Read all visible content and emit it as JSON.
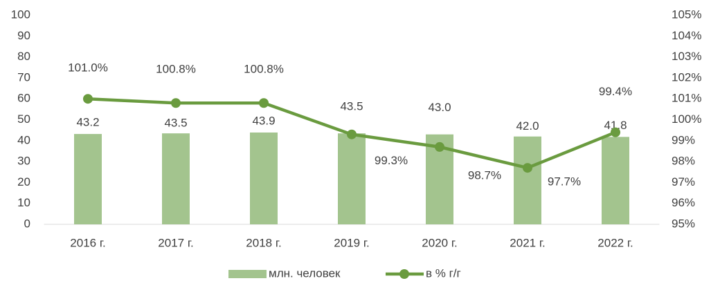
{
  "chart_data": {
    "type": "bar-line",
    "categories": [
      "2016 г.",
      "2017 г.",
      "2018 г.",
      "2019 г.",
      "2020 г.",
      "2021 г.",
      "2022 г."
    ],
    "series": [
      {
        "name": "млн. человек",
        "type": "bar",
        "color": "#a3c48e",
        "values": [
          43.2,
          43.5,
          43.9,
          43.5,
          43.0,
          42.0,
          41.8
        ],
        "value_labels": [
          "43.2",
          "43.5",
          "43.9",
          "43.5",
          "43.0",
          "42.0",
          "41.8"
        ]
      },
      {
        "name": "в % г/г",
        "type": "line",
        "axis": "y2",
        "color": "#6a9b3f",
        "values": [
          101.0,
          100.8,
          100.8,
          99.3,
          98.7,
          97.7,
          99.4
        ],
        "value_labels": [
          "101.0%",
          "100.8%",
          "100.8%",
          "99.3%",
          "98.7%",
          "97.7%",
          "99.4%"
        ]
      }
    ],
    "ylim": [
      0,
      100
    ],
    "yticks": [
      0,
      10,
      20,
      30,
      40,
      50,
      60,
      70,
      80,
      90,
      100
    ],
    "y2lim": [
      95,
      105
    ],
    "y2ticks": [
      {
        "value": 95,
        "label": "95%"
      },
      {
        "value": 96,
        "label": "96%"
      },
      {
        "value": 97,
        "label": "97%"
      },
      {
        "value": 98,
        "label": "98%"
      },
      {
        "value": 99,
        "label": "99%"
      },
      {
        "value": 100,
        "label": "100%"
      },
      {
        "value": 101,
        "label": "101%"
      },
      {
        "value": 102,
        "label": "102%"
      },
      {
        "value": 103,
        "label": "103%"
      },
      {
        "value": 104,
        "label": "104%"
      },
      {
        "value": 105,
        "label": "105%"
      }
    ],
    "legend": "bottom"
  }
}
